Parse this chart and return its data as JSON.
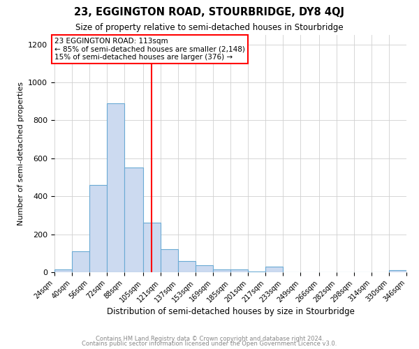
{
  "title": "23, EGGINGTON ROAD, STOURBRIDGE, DY8 4QJ",
  "subtitle": "Size of property relative to semi-detached houses in Stourbridge",
  "xlabel": "Distribution of semi-detached houses by size in Stourbridge",
  "ylabel": "Number of semi-detached properties",
  "bin_edges": [
    24,
    40,
    56,
    72,
    88,
    105,
    121,
    137,
    153,
    169,
    185,
    201,
    217,
    233,
    249,
    266,
    282,
    298,
    314,
    330,
    346
  ],
  "bin_labels": [
    "24sqm",
    "40sqm",
    "56sqm",
    "72sqm",
    "88sqm",
    "105sqm",
    "121sqm",
    "137sqm",
    "153sqm",
    "169sqm",
    "185sqm",
    "201sqm",
    "217sqm",
    "233sqm",
    "249sqm",
    "266sqm",
    "282sqm",
    "298sqm",
    "314sqm",
    "330sqm",
    "346sqm"
  ],
  "bar_heights": [
    15,
    110,
    460,
    890,
    550,
    260,
    120,
    60,
    35,
    15,
    15,
    5,
    30,
    0,
    0,
    0,
    0,
    0,
    0,
    10
  ],
  "bar_color": "#ccdaf0",
  "bar_edgecolor": "#6aaad4",
  "vline_x": 113,
  "vline_color": "red",
  "annotation_title": "23 EGGINGTON ROAD: 113sqm",
  "annotation_line1": "← 85% of semi-detached houses are smaller (2,148)",
  "annotation_line2": "15% of semi-detached houses are larger (376) →",
  "annotation_box_edgecolor": "red",
  "ylim": [
    0,
    1250
  ],
  "yticks": [
    0,
    200,
    400,
    600,
    800,
    1000,
    1200
  ],
  "footer1": "Contains HM Land Registry data © Crown copyright and database right 2024.",
  "footer2": "Contains public sector information licensed under the Open Government Licence v3.0.",
  "background_color": "#ffffff",
  "grid_color": "#d0d0d0"
}
